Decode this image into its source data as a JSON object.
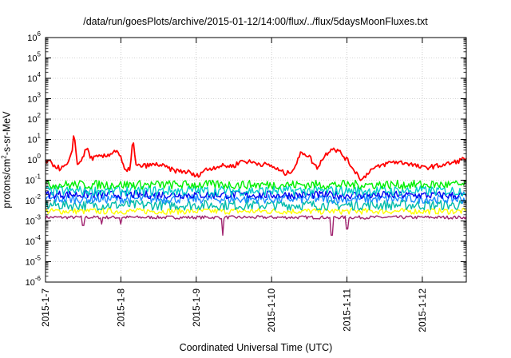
{
  "chart_data": {
    "type": "line",
    "title": "/data/run/goesPlots/archive/2015-01-12/14:00/flux/../flux/5daysMoonFluxes.txt",
    "xlabel": "Coordinated Universal Time (UTC)",
    "ylabel_prefix": "protons/cm",
    "ylabel_sup": "2",
    "ylabel_suffix": "-s-sr-MeV",
    "y_scale": "log",
    "ylim": [
      1e-06,
      1000000.0
    ],
    "xlim": [
      "2015-01-07",
      "2015-01-12 14:00"
    ],
    "grid": true,
    "x_ticks": [
      "2015-1-7",
      "2015-1-8",
      "2015-1-9",
      "2015-1-10",
      "2015-1-11",
      "2015-1-12"
    ],
    "y_ticks": [
      {
        "base": "10",
        "exp": "-6"
      },
      {
        "base": "10",
        "exp": "-5"
      },
      {
        "base": "10",
        "exp": "-4"
      },
      {
        "base": "10",
        "exp": "-3"
      },
      {
        "base": "10",
        "exp": "-2"
      },
      {
        "base": "10",
        "exp": "-1"
      },
      {
        "base": "10",
        "exp": "0"
      },
      {
        "base": "10",
        "exp": "1"
      },
      {
        "base": "10",
        "exp": "2"
      },
      {
        "base": "10",
        "exp": "3"
      },
      {
        "base": "10",
        "exp": "4"
      },
      {
        "base": "10",
        "exp": "5"
      },
      {
        "base": "10",
        "exp": "6"
      }
    ],
    "series": [
      {
        "color": "#ff0000",
        "base": [
          [
            0,
            0.9
          ],
          [
            0.1,
            0.6
          ],
          [
            0.2,
            0.35
          ],
          [
            0.3,
            0.6
          ],
          [
            0.35,
            2.0
          ],
          [
            0.38,
            30
          ],
          [
            0.42,
            0.5
          ],
          [
            0.5,
            1.5
          ],
          [
            0.55,
            4.0
          ],
          [
            0.6,
            1.2
          ],
          [
            0.8,
            1.5
          ],
          [
            0.9,
            2.5
          ],
          [
            0.95,
            3.0
          ],
          [
            1.0,
            1.2
          ],
          [
            1.05,
            0.3
          ],
          [
            1.08,
            0.25
          ],
          [
            1.12,
            0.4
          ],
          [
            1.16,
            10
          ],
          [
            1.2,
            0.5
          ],
          [
            1.3,
            0.5
          ],
          [
            1.5,
            0.6
          ],
          [
            1.7,
            0.3
          ],
          [
            1.9,
            0.25
          ],
          [
            2.0,
            0.15
          ],
          [
            2.1,
            0.3
          ],
          [
            2.3,
            0.5
          ],
          [
            2.5,
            0.5
          ],
          [
            2.6,
            0.9
          ],
          [
            2.8,
            0.7
          ],
          [
            3.0,
            0.5
          ],
          [
            3.1,
            0.3
          ],
          [
            3.2,
            0.2
          ],
          [
            3.3,
            0.4
          ],
          [
            3.4,
            2.5
          ],
          [
            3.5,
            1.5
          ],
          [
            3.55,
            0.7
          ],
          [
            3.6,
            0.4
          ],
          [
            3.7,
            1.5
          ],
          [
            3.8,
            4.0
          ],
          [
            3.9,
            2.5
          ],
          [
            4.0,
            1.0
          ],
          [
            4.1,
            0.3
          ],
          [
            4.2,
            0.1
          ],
          [
            4.3,
            0.3
          ],
          [
            4.5,
            0.6
          ],
          [
            4.6,
            0.8
          ],
          [
            4.8,
            0.7
          ],
          [
            5.0,
            0.4
          ],
          [
            5.2,
            0.5
          ],
          [
            5.4,
            0.7
          ],
          [
            5.58,
            1.2
          ]
        ],
        "noise": 0.12,
        "dips": []
      },
      {
        "color": "#00ee00",
        "base": [
          [
            0,
            0.06
          ],
          [
            5.58,
            0.06
          ]
        ],
        "noise": 0.22,
        "dips": []
      },
      {
        "color": "#00cccc",
        "base": [
          [
            0,
            0.03
          ],
          [
            5.58,
            0.03
          ]
        ],
        "noise": 0.25,
        "dips": []
      },
      {
        "color": "#0000ee",
        "base": [
          [
            0,
            0.02
          ],
          [
            5.58,
            0.018
          ]
        ],
        "noise": 0.2,
        "dips": []
      },
      {
        "color": "#1a8cff",
        "base": [
          [
            0,
            0.012
          ],
          [
            5.58,
            0.012
          ]
        ],
        "noise": 0.22,
        "dips": []
      },
      {
        "color": "#00bbaa",
        "base": [
          [
            0,
            0.006
          ],
          [
            5.58,
            0.006
          ]
        ],
        "noise": 0.25,
        "dips": []
      },
      {
        "color": "#ffff00",
        "base": [
          [
            0,
            0.003
          ],
          [
            5.58,
            0.003
          ]
        ],
        "noise": 0.15,
        "dips": []
      },
      {
        "color": "#a0226e",
        "base": [
          [
            0,
            0.0015
          ],
          [
            5.58,
            0.0015
          ]
        ],
        "noise": 0.08,
        "dips": [
          [
            0.5,
            0.0006
          ],
          [
            0.75,
            0.0007
          ],
          [
            1.0,
            0.0007
          ],
          [
            2.35,
            0.0002
          ],
          [
            3.8,
            0.0002
          ],
          [
            4.0,
            0.0004
          ]
        ]
      }
    ]
  }
}
